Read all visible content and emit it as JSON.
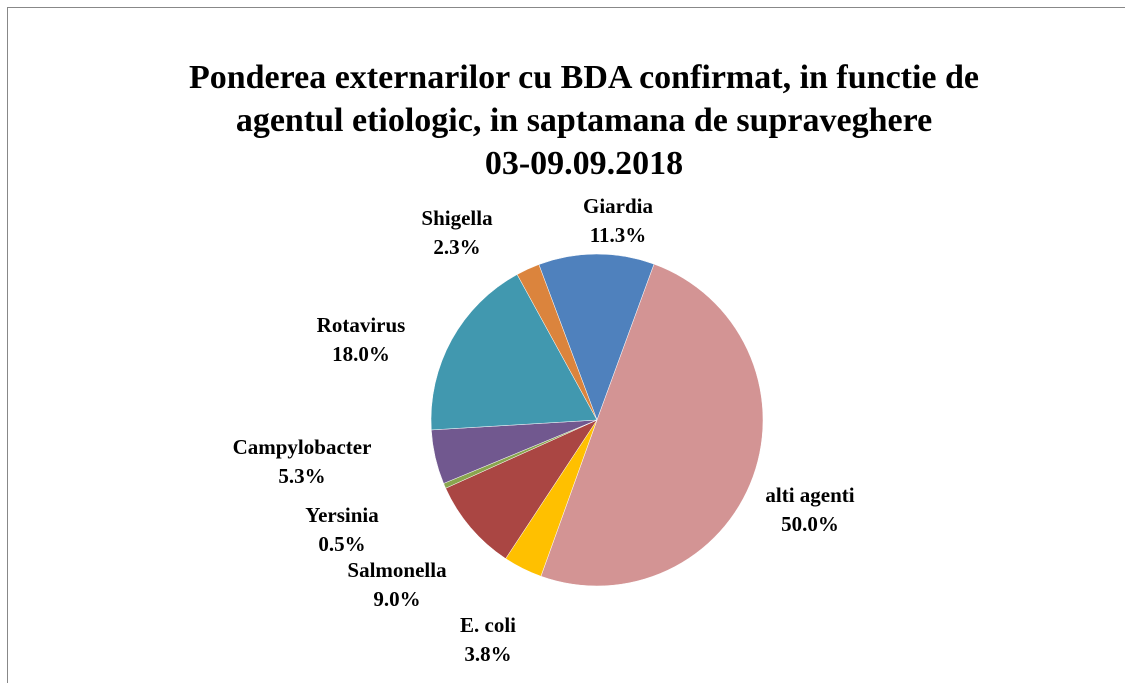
{
  "chart_data": {
    "type": "pie",
    "title": [
      "Ponderea externarilor cu BDA confirmat, in functie de",
      "agentul etiologic, in saptamana de supraveghere",
      "03-09.09.2018"
    ],
    "categories": [
      "Giardia",
      "alti agenti",
      "E. coli",
      "Salmonella",
      "Yersinia",
      "Campylobacter",
      "Rotavirus",
      "Shigella"
    ],
    "values": [
      11.3,
      50.0,
      3.8,
      9.0,
      0.5,
      5.3,
      18.0,
      2.3
    ],
    "value_labels": [
      "11.3%",
      "50.0%",
      "3.8%",
      "9.0%",
      "0.5%",
      "5.3%",
      "18.0%",
      "2.3%"
    ],
    "colors": [
      "#4f81bd",
      "#d39494",
      "#ffc000",
      "#aa4643",
      "#89a54e",
      "#71588f",
      "#4198af",
      "#db843d"
    ]
  }
}
